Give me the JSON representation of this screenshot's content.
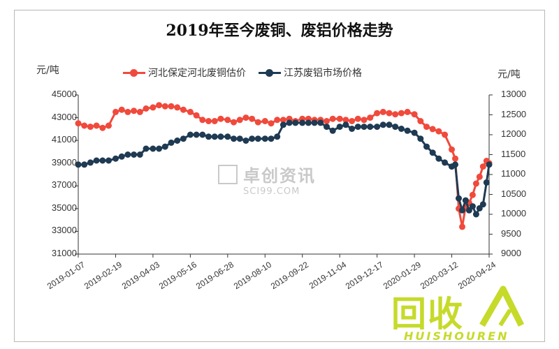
{
  "chart_data": {
    "type": "line",
    "title": "2019年至今废铜、废铝价格走势",
    "left_axis_unit": "元/吨",
    "right_axis_unit": "元/吨",
    "x_tick_labels": [
      "2019-01-07",
      "2019-02-19",
      "2019-04-03",
      "2019-05-16",
      "2019-06-28",
      "2019-08-10",
      "2019-09-22",
      "2019-11-04",
      "2019-12-17",
      "2020-01-29",
      "2020-03-12",
      "2020-04-24"
    ],
    "left_axis": {
      "ylim": [
        31000,
        45000
      ],
      "ticks": [
        "31000",
        "33000",
        "35000",
        "37000",
        "39000",
        "41000",
        "43000",
        "45000"
      ]
    },
    "right_axis": {
      "ylim": [
        9000,
        13000
      ],
      "ticks": [
        "9000",
        "9500",
        "10000",
        "10500",
        "11000",
        "11500",
        "12000",
        "12500",
        "13000"
      ]
    },
    "legend_position": "top",
    "grid": false,
    "series": [
      {
        "name": "河北保定河北废铜估价",
        "axis": "left",
        "color": "#f04a3c",
        "x": [
          "2019-01-07",
          "2019-01-14",
          "2019-01-21",
          "2019-01-28",
          "2019-02-04",
          "2019-02-11",
          "2019-02-19",
          "2019-02-26",
          "2019-03-05",
          "2019-03-12",
          "2019-03-19",
          "2019-03-26",
          "2019-04-03",
          "2019-04-10",
          "2019-04-17",
          "2019-04-24",
          "2019-05-01",
          "2019-05-08",
          "2019-05-16",
          "2019-05-23",
          "2019-05-30",
          "2019-06-06",
          "2019-06-13",
          "2019-06-20",
          "2019-06-28",
          "2019-07-05",
          "2019-07-12",
          "2019-07-19",
          "2019-07-26",
          "2019-08-02",
          "2019-08-10",
          "2019-08-17",
          "2019-08-24",
          "2019-08-31",
          "2019-09-07",
          "2019-09-14",
          "2019-09-22",
          "2019-09-29",
          "2019-10-06",
          "2019-10-13",
          "2019-10-20",
          "2019-10-27",
          "2019-11-04",
          "2019-11-11",
          "2019-11-18",
          "2019-11-25",
          "2019-12-02",
          "2019-12-09",
          "2019-12-17",
          "2019-12-24",
          "2019-12-31",
          "2020-01-07",
          "2020-01-14",
          "2020-01-21",
          "2020-01-29",
          "2020-02-05",
          "2020-02-12",
          "2020-02-19",
          "2020-02-26",
          "2020-03-04",
          "2020-03-12",
          "2020-03-16",
          "2020-03-20",
          "2020-03-24",
          "2020-03-28",
          "2020-04-01",
          "2020-04-05",
          "2020-04-09",
          "2020-04-13",
          "2020-04-17",
          "2020-04-21",
          "2020-04-24"
        ],
        "values": [
          42500,
          42300,
          42200,
          42300,
          42100,
          42300,
          43500,
          43700,
          43500,
          43600,
          43500,
          43800,
          43900,
          44100,
          44000,
          44000,
          43900,
          43700,
          43500,
          43200,
          42800,
          42700,
          42700,
          42900,
          42800,
          42600,
          42800,
          43000,
          42900,
          42600,
          42700,
          42500,
          42800,
          42800,
          42900,
          42700,
          42900,
          42900,
          42800,
          42800,
          42700,
          42900,
          42900,
          42800,
          42700,
          42900,
          42800,
          43000,
          43400,
          43500,
          43400,
          43300,
          43400,
          43500,
          43300,
          42700,
          42200,
          42000,
          41800,
          41500,
          40200,
          39400,
          35000,
          33400,
          35200,
          35500,
          36200,
          37200,
          37800,
          38700,
          39200,
          39000
        ]
      },
      {
        "name": "江苏废铝市场价格",
        "axis": "right",
        "color": "#1f3a53",
        "x": [
          "2019-01-07",
          "2019-01-14",
          "2019-01-21",
          "2019-01-28",
          "2019-02-04",
          "2019-02-11",
          "2019-02-19",
          "2019-02-26",
          "2019-03-05",
          "2019-03-12",
          "2019-03-19",
          "2019-03-26",
          "2019-04-03",
          "2019-04-10",
          "2019-04-17",
          "2019-04-24",
          "2019-05-01",
          "2019-05-08",
          "2019-05-16",
          "2019-05-23",
          "2019-05-30",
          "2019-06-06",
          "2019-06-13",
          "2019-06-20",
          "2019-06-28",
          "2019-07-05",
          "2019-07-12",
          "2019-07-19",
          "2019-07-26",
          "2019-08-02",
          "2019-08-10",
          "2019-08-17",
          "2019-08-24",
          "2019-08-31",
          "2019-09-07",
          "2019-09-14",
          "2019-09-22",
          "2019-09-29",
          "2019-10-06",
          "2019-10-13",
          "2019-10-20",
          "2019-10-27",
          "2019-11-04",
          "2019-11-11",
          "2019-11-18",
          "2019-11-25",
          "2019-12-02",
          "2019-12-09",
          "2019-12-17",
          "2019-12-24",
          "2019-12-31",
          "2020-01-07",
          "2020-01-14",
          "2020-01-21",
          "2020-01-29",
          "2020-02-05",
          "2020-02-12",
          "2020-02-19",
          "2020-02-26",
          "2020-03-04",
          "2020-03-12",
          "2020-03-16",
          "2020-03-20",
          "2020-03-24",
          "2020-03-28",
          "2020-04-01",
          "2020-04-05",
          "2020-04-09",
          "2020-04-13",
          "2020-04-17",
          "2020-04-21",
          "2020-04-24"
        ],
        "values": [
          11250,
          11250,
          11300,
          11350,
          11350,
          11350,
          11400,
          11450,
          11500,
          11500,
          11500,
          11650,
          11650,
          11650,
          11700,
          11800,
          11850,
          11900,
          12000,
          12000,
          12000,
          11950,
          11950,
          11950,
          11950,
          11900,
          11900,
          11850,
          11900,
          11900,
          11900,
          11900,
          11950,
          12250,
          12300,
          12300,
          12300,
          12300,
          12300,
          12300,
          12200,
          12100,
          12200,
          12250,
          12150,
          12200,
          12200,
          12200,
          12200,
          12250,
          12250,
          12200,
          12150,
          12100,
          12050,
          11900,
          11700,
          11550,
          11400,
          11300,
          11200,
          11250,
          10400,
          10100,
          10350,
          10100,
          10200,
          10000,
          10150,
          10250,
          10800,
          11250
        ]
      }
    ]
  },
  "watermark": {
    "cn": "卓创资讯",
    "en": "SCI99.COM"
  },
  "logo": {
    "cn": "回收",
    "en": "HUISHOUREN"
  }
}
